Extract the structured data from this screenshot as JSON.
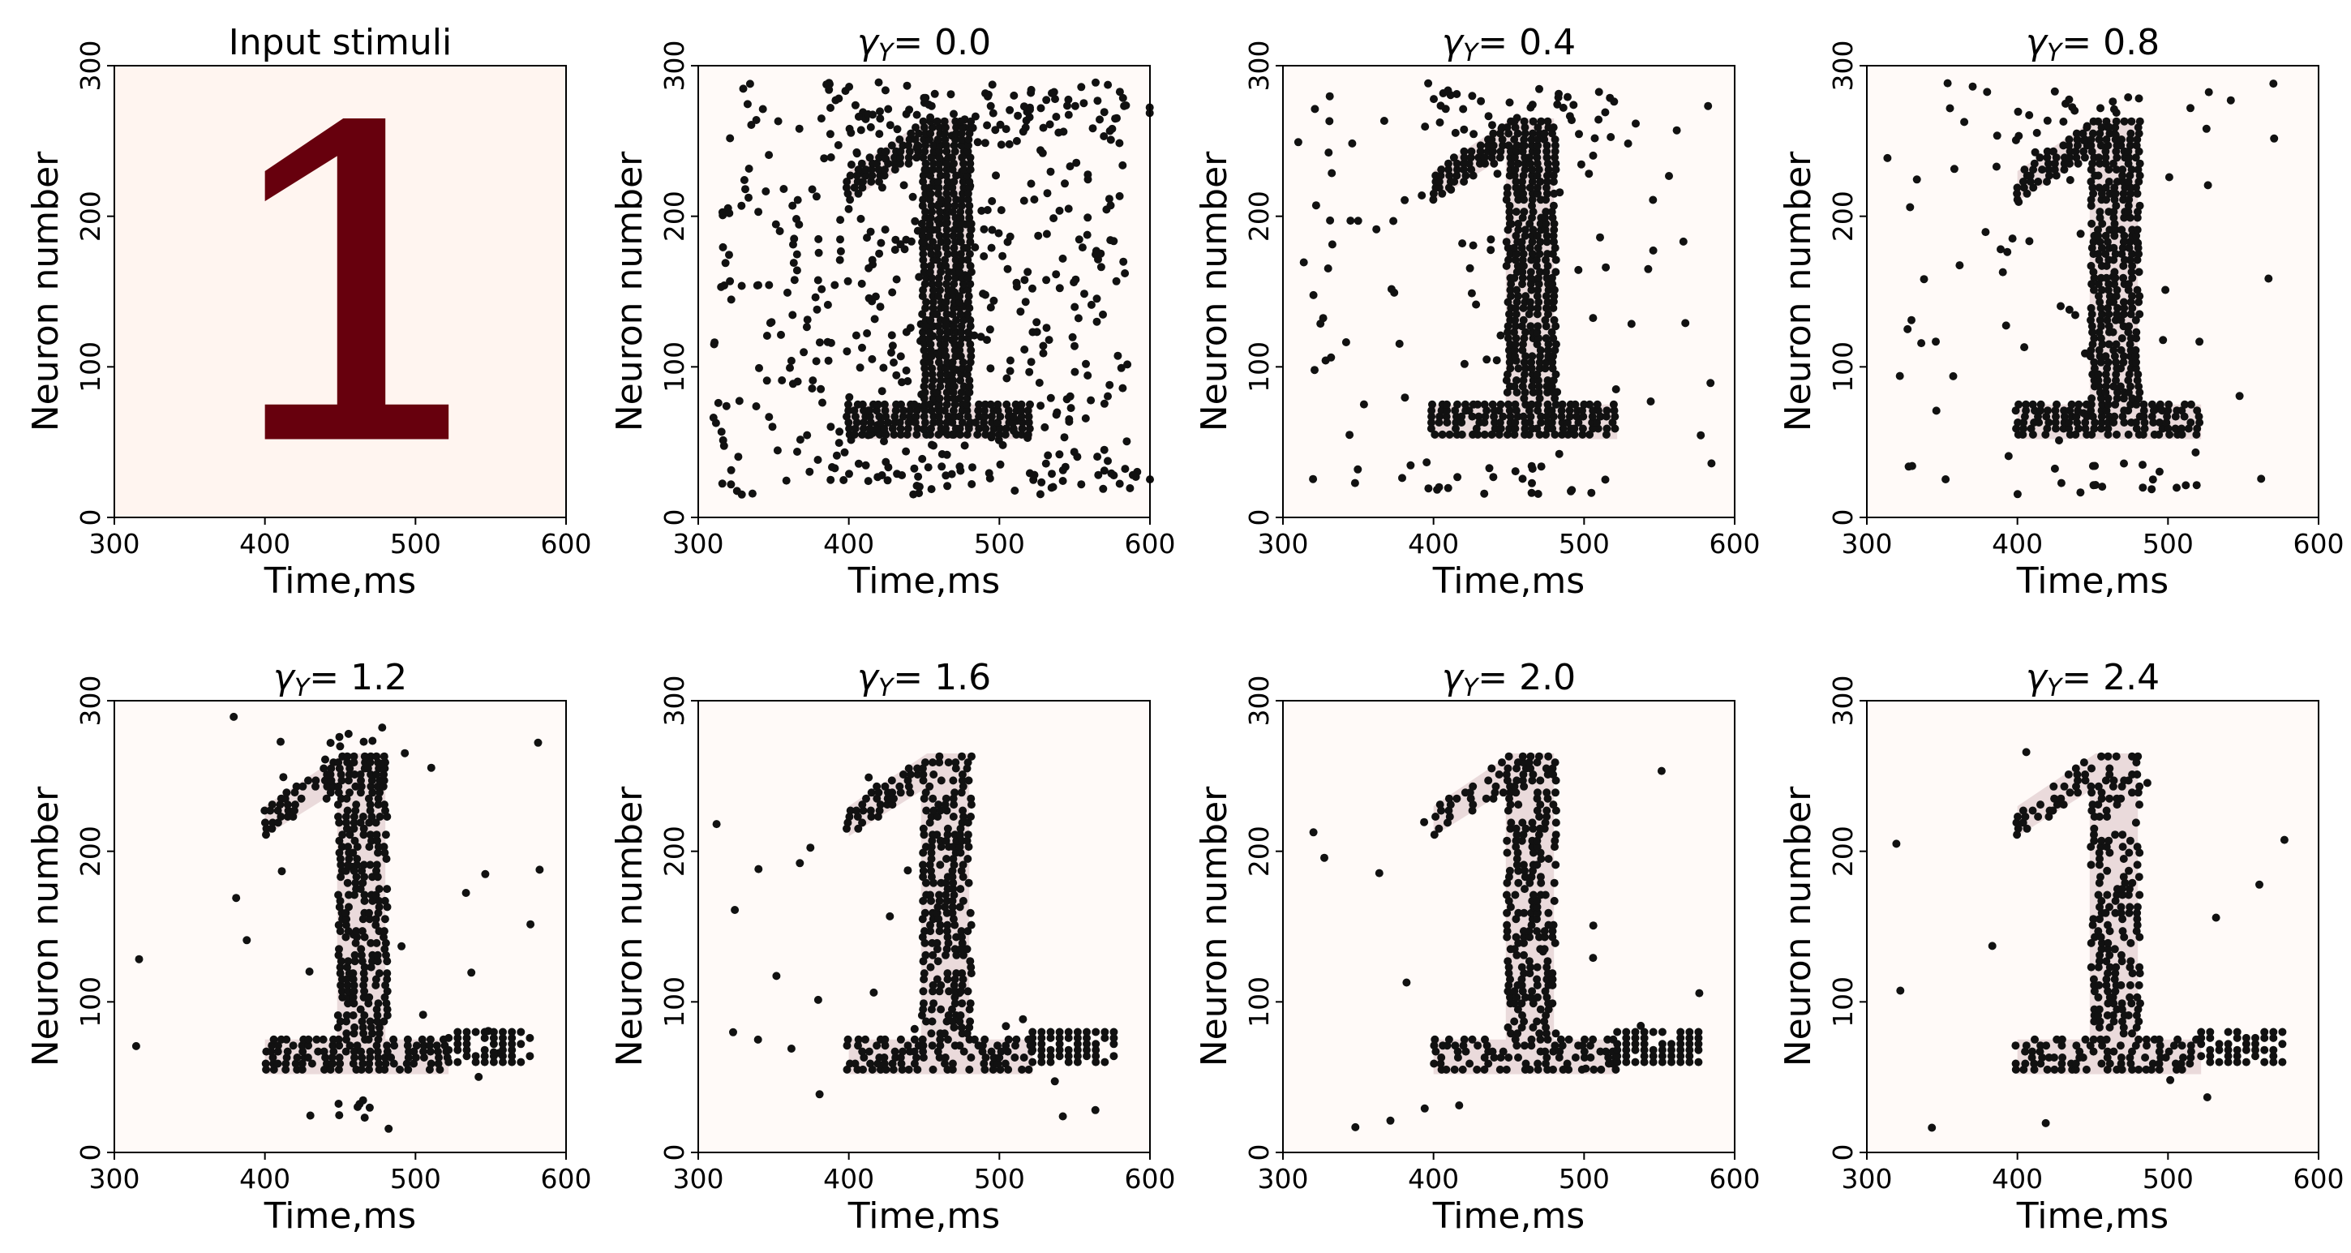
{
  "figure": {
    "description": "Raster plots of neuron spikes for stimulus digit 1 at several gamma values"
  },
  "chart_data": [
    {
      "type": "heatmap",
      "panel_id": "input",
      "title": "Input stimuli",
      "digit": "1",
      "xlabel": "Time,ms",
      "ylabel": "Neuron number",
      "xlim": [
        300,
        600
      ],
      "ylim": [
        0,
        300
      ],
      "xticks": [
        300,
        400,
        500,
        600
      ],
      "yticks": [
        0,
        100,
        200,
        300
      ],
      "digit_color": "#67000d",
      "background_color": "#fff5f0"
    },
    {
      "type": "scatter",
      "panel_id": "g00",
      "title_prefix": "γ",
      "title_sub": "Y",
      "title_value": "= 0.0",
      "gamma": 0.0,
      "noise_points": 480,
      "pattern_density": 1.0,
      "seed": 11,
      "xlabel": "Time,ms",
      "ylabel": "Neuron number",
      "xlim": [
        300,
        600
      ],
      "ylim": [
        0,
        300
      ],
      "xticks": [
        300,
        400,
        500,
        600
      ],
      "yticks": [
        0,
        100,
        200,
        300
      ],
      "extra_blocks": [
        [
          400,
          600,
          15,
          35
        ],
        [
          400,
          600,
          255,
          285
        ]
      ]
    },
    {
      "type": "scatter",
      "panel_id": "g04",
      "title_prefix": "γ",
      "title_sub": "Y",
      "title_value": "= 0.4",
      "gamma": 0.4,
      "noise_points": 95,
      "pattern_density": 0.9,
      "seed": 23,
      "xlabel": "Time,ms",
      "ylabel": "Neuron number",
      "xlim": [
        300,
        600
      ],
      "ylim": [
        0,
        300
      ],
      "xticks": [
        300,
        400,
        500,
        600
      ],
      "yticks": [
        0,
        100,
        200,
        300
      ],
      "extra_blocks": [
        [
          400,
          520,
          15,
          35
        ],
        [
          400,
          520,
          250,
          285
        ]
      ]
    },
    {
      "type": "scatter",
      "panel_id": "g08",
      "title_prefix": "γ",
      "title_sub": "Y",
      "title_value": "= 0.8",
      "gamma": 0.8,
      "noise_points": 70,
      "pattern_density": 0.85,
      "seed": 37,
      "xlabel": "Time,ms",
      "ylabel": "Neuron number",
      "xlim": [
        300,
        600
      ],
      "ylim": [
        0,
        300
      ],
      "xticks": [
        300,
        400,
        500,
        600
      ],
      "yticks": [
        0,
        100,
        200,
        300
      ],
      "extra_blocks": [
        [
          420,
          520,
          15,
          35
        ],
        [
          430,
          490,
          250,
          285
        ]
      ]
    },
    {
      "type": "scatter",
      "panel_id": "g12",
      "title_prefix": "γ",
      "title_sub": "Y",
      "title_value": "= 1.2",
      "gamma": 1.2,
      "noise_points": 30,
      "pattern_density": 0.75,
      "seed": 41,
      "xlabel": "Time,ms",
      "ylabel": "Neuron number",
      "xlim": [
        300,
        600
      ],
      "ylim": [
        0,
        300
      ],
      "xticks": [
        300,
        400,
        500,
        600
      ],
      "yticks": [
        0,
        100,
        200,
        300
      ],
      "extra_blocks": [
        [
          430,
          470,
          15,
          35
        ],
        [
          440,
          480,
          255,
          285
        ]
      ]
    },
    {
      "type": "scatter",
      "panel_id": "g16",
      "title_prefix": "γ",
      "title_sub": "Y",
      "title_value": "= 1.6",
      "gamma": 1.6,
      "noise_points": 22,
      "pattern_density": 0.65,
      "seed": 53,
      "xlabel": "Time,ms",
      "ylabel": "Neuron number",
      "xlim": [
        300,
        600
      ],
      "ylim": [
        0,
        300
      ],
      "xticks": [
        300,
        400,
        500,
        600
      ],
      "yticks": [
        0,
        100,
        200,
        300
      ],
      "extra_blocks": []
    },
    {
      "type": "scatter",
      "panel_id": "g20",
      "title_prefix": "γ",
      "title_sub": "Y",
      "title_value": "= 2.0",
      "gamma": 2.0,
      "noise_points": 16,
      "pattern_density": 0.6,
      "seed": 67,
      "xlabel": "Time,ms",
      "ylabel": "Neuron number",
      "xlim": [
        300,
        600
      ],
      "ylim": [
        0,
        300
      ],
      "xticks": [
        300,
        400,
        500,
        600
      ],
      "yticks": [
        0,
        100,
        200,
        300
      ],
      "extra_blocks": []
    },
    {
      "type": "scatter",
      "panel_id": "g24",
      "title_prefix": "γ",
      "title_sub": "Y",
      "title_value": "= 2.4",
      "gamma": 2.4,
      "noise_points": 12,
      "pattern_density": 0.55,
      "seed": 79,
      "xlabel": "Time,ms",
      "ylabel": "Neuron number",
      "xlim": [
        300,
        600
      ],
      "ylim": [
        0,
        300
      ],
      "xticks": [
        300,
        400,
        500,
        600
      ],
      "yticks": [
        0,
        100,
        200,
        300
      ],
      "extra_blocks": []
    }
  ],
  "colors": {
    "spike": "#111111",
    "digit_overlay": "#e6d3d6",
    "panel_bg_overlay": "#fffaf8"
  }
}
